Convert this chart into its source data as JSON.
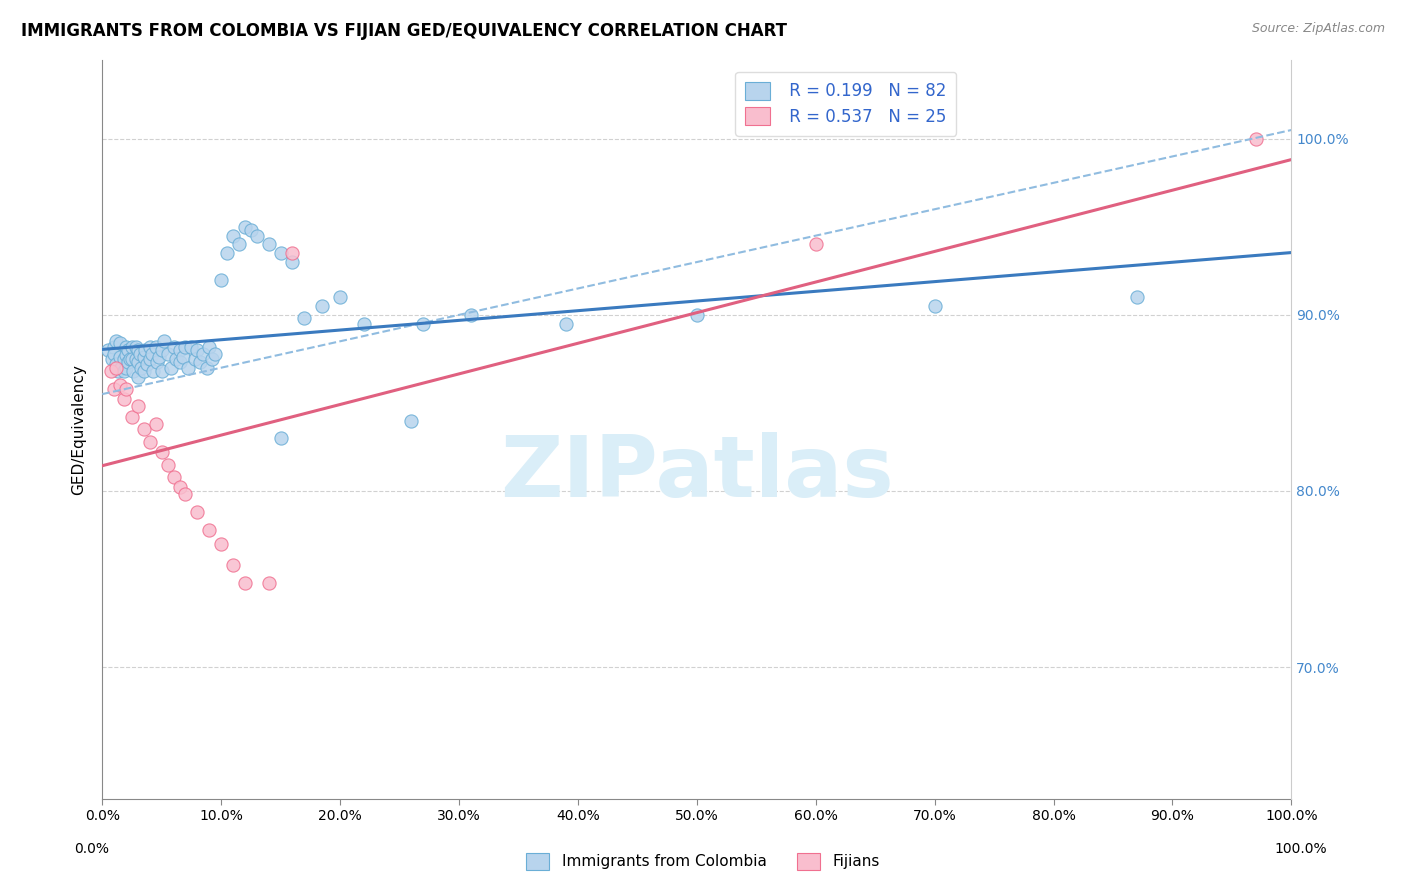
{
  "title": "IMMIGRANTS FROM COLOMBIA VS FIJIAN GED/EQUIVALENCY CORRELATION CHART",
  "source": "Source: ZipAtlas.com",
  "ylabel": "GED/Equivalency",
  "xlim": [
    0.0,
    1.0
  ],
  "ylim": [
    0.625,
    1.045
  ],
  "x_tick_labels": [
    "0.0%",
    "10.0%",
    "20.0%",
    "30.0%",
    "40.0%",
    "50.0%",
    "60.0%",
    "70.0%",
    "80.0%",
    "90.0%",
    "100.0%"
  ],
  "x_tick_vals": [
    0.0,
    0.1,
    0.2,
    0.3,
    0.4,
    0.5,
    0.6,
    0.7,
    0.8,
    0.9,
    1.0
  ],
  "y_tick_labels": [
    "70.0%",
    "80.0%",
    "90.0%",
    "100.0%"
  ],
  "y_tick_vals": [
    0.7,
    0.8,
    0.9,
    1.0
  ],
  "colombia_R": 0.199,
  "colombia_N": 82,
  "fijian_R": 0.537,
  "fijian_N": 25,
  "colombia_color": "#b8d4ed",
  "fijian_color": "#f9bece",
  "colombia_edge_color": "#6aaed6",
  "fijian_edge_color": "#f07090",
  "colombia_line_color": "#3a7abf",
  "fijian_line_color": "#e06080",
  "colombia_dash_color": "#90bce0",
  "watermark_text": "ZIPatlas",
  "watermark_color": "#daeef8",
  "background_color": "#ffffff",
  "grid_color": "#cccccc",
  "colombia_scatter_x": [
    0.005,
    0.008,
    0.01,
    0.01,
    0.012,
    0.012,
    0.013,
    0.015,
    0.015,
    0.016,
    0.018,
    0.018,
    0.02,
    0.02,
    0.02,
    0.022,
    0.022,
    0.023,
    0.025,
    0.025,
    0.026,
    0.028,
    0.028,
    0.03,
    0.03,
    0.03,
    0.032,
    0.033,
    0.035,
    0.035,
    0.036,
    0.038,
    0.04,
    0.04,
    0.042,
    0.043,
    0.045,
    0.046,
    0.048,
    0.05,
    0.05,
    0.052,
    0.055,
    0.058,
    0.06,
    0.062,
    0.065,
    0.065,
    0.068,
    0.07,
    0.072,
    0.075,
    0.078,
    0.08,
    0.082,
    0.085,
    0.088,
    0.09,
    0.092,
    0.095,
    0.1,
    0.105,
    0.11,
    0.115,
    0.12,
    0.125,
    0.13,
    0.14,
    0.15,
    0.16,
    0.17,
    0.185,
    0.2,
    0.22,
    0.27,
    0.31,
    0.39,
    0.5,
    0.7,
    0.87,
    0.15,
    0.26
  ],
  "colombia_scatter_y": [
    0.88,
    0.875,
    0.882,
    0.878,
    0.885,
    0.872,
    0.868,
    0.884,
    0.876,
    0.87,
    0.875,
    0.868,
    0.882,
    0.877,
    0.87,
    0.88,
    0.873,
    0.875,
    0.882,
    0.875,
    0.868,
    0.882,
    0.875,
    0.88,
    0.873,
    0.865,
    0.878,
    0.87,
    0.876,
    0.868,
    0.88,
    0.872,
    0.882,
    0.875,
    0.878,
    0.868,
    0.882,
    0.873,
    0.876,
    0.88,
    0.868,
    0.885,
    0.878,
    0.87,
    0.882,
    0.875,
    0.88,
    0.873,
    0.876,
    0.882,
    0.87,
    0.882,
    0.875,
    0.88,
    0.873,
    0.878,
    0.87,
    0.882,
    0.875,
    0.878,
    0.92,
    0.935,
    0.945,
    0.94,
    0.95,
    0.948,
    0.945,
    0.94,
    0.935,
    0.93,
    0.898,
    0.905,
    0.91,
    0.895,
    0.895,
    0.9,
    0.895,
    0.9,
    0.905,
    0.91,
    0.83,
    0.84
  ],
  "fijian_scatter_x": [
    0.007,
    0.01,
    0.012,
    0.015,
    0.018,
    0.02,
    0.025,
    0.03,
    0.035,
    0.04,
    0.045,
    0.05,
    0.055,
    0.06,
    0.065,
    0.07,
    0.08,
    0.09,
    0.1,
    0.11,
    0.12,
    0.14,
    0.16,
    0.6,
    0.97
  ],
  "fijian_scatter_y": [
    0.868,
    0.858,
    0.87,
    0.86,
    0.852,
    0.858,
    0.842,
    0.848,
    0.835,
    0.828,
    0.838,
    0.822,
    0.815,
    0.808,
    0.802,
    0.798,
    0.788,
    0.778,
    0.77,
    0.758,
    0.748,
    0.748,
    0.935,
    0.94,
    1.0
  ]
}
